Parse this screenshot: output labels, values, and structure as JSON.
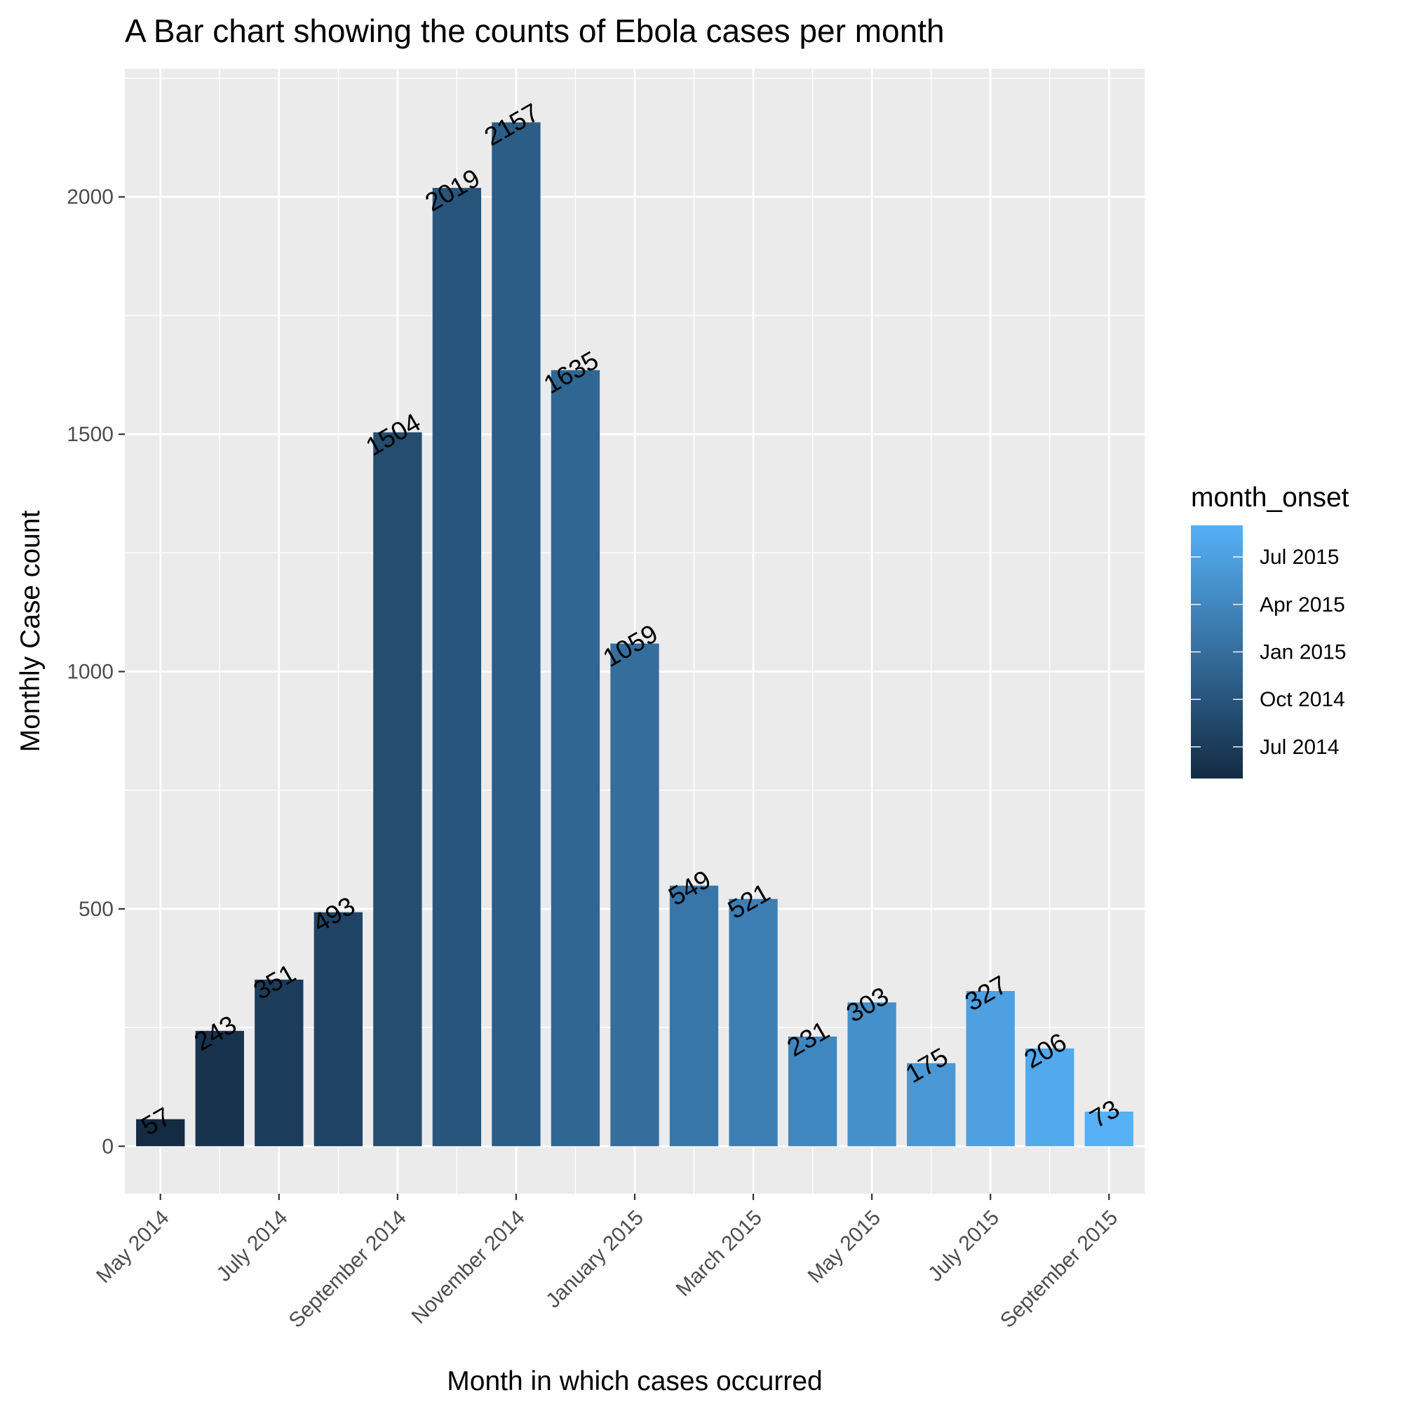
{
  "chart_data": {
    "type": "bar",
    "title": "A Bar chart showing the counts of Ebola cases per month",
    "xlabel": "Month in which cases occurred",
    "ylabel": "Monthly Case count",
    "categories": [
      "2014-05",
      "2014-06",
      "2014-07",
      "2014-08",
      "2014-09",
      "2014-10",
      "2014-11",
      "2014-12",
      "2015-01",
      "2015-02",
      "2015-03",
      "2015-04",
      "2015-05",
      "2015-06",
      "2015-07",
      "2015-08",
      "2015-09"
    ],
    "values": [
      57,
      243,
      351,
      493,
      1504,
      2019,
      2157,
      1635,
      1059,
      549,
      521,
      231,
      303,
      175,
      327,
      206,
      73
    ],
    "ylim": [
      -100,
      2270
    ],
    "yticks": [
      0,
      500,
      1000,
      1500,
      2000
    ],
    "xticks": [
      {
        "month": "2014-05",
        "label": "May 2014"
      },
      {
        "month": "2014-07",
        "label": "July 2014"
      },
      {
        "month": "2014-09",
        "label": "September 2014"
      },
      {
        "month": "2014-11",
        "label": "November 2014"
      },
      {
        "month": "2015-01",
        "label": "January 2015"
      },
      {
        "month": "2015-03",
        "label": "March 2015"
      },
      {
        "month": "2015-05",
        "label": "May 2015"
      },
      {
        "month": "2015-07",
        "label": "July 2015"
      },
      {
        "month": "2015-09",
        "label": "September 2015"
      }
    ],
    "grid": true,
    "legend": {
      "title": "month_onset",
      "position": "right",
      "type": "colorbar",
      "range": [
        "2014-05",
        "2015-09"
      ],
      "color_low": "#132b43",
      "color_high": "#56b1f7",
      "breaks": [
        {
          "month": "2014-07",
          "label": "Jul 2014"
        },
        {
          "month": "2014-10",
          "label": "Oct 2014"
        },
        {
          "month": "2015-01",
          "label": "Jan 2015"
        },
        {
          "month": "2015-04",
          "label": "Apr 2015"
        },
        {
          "month": "2015-07",
          "label": "Jul 2015"
        }
      ]
    },
    "panel_background": "#ebebeb",
    "grid_color": "#ffffff"
  }
}
